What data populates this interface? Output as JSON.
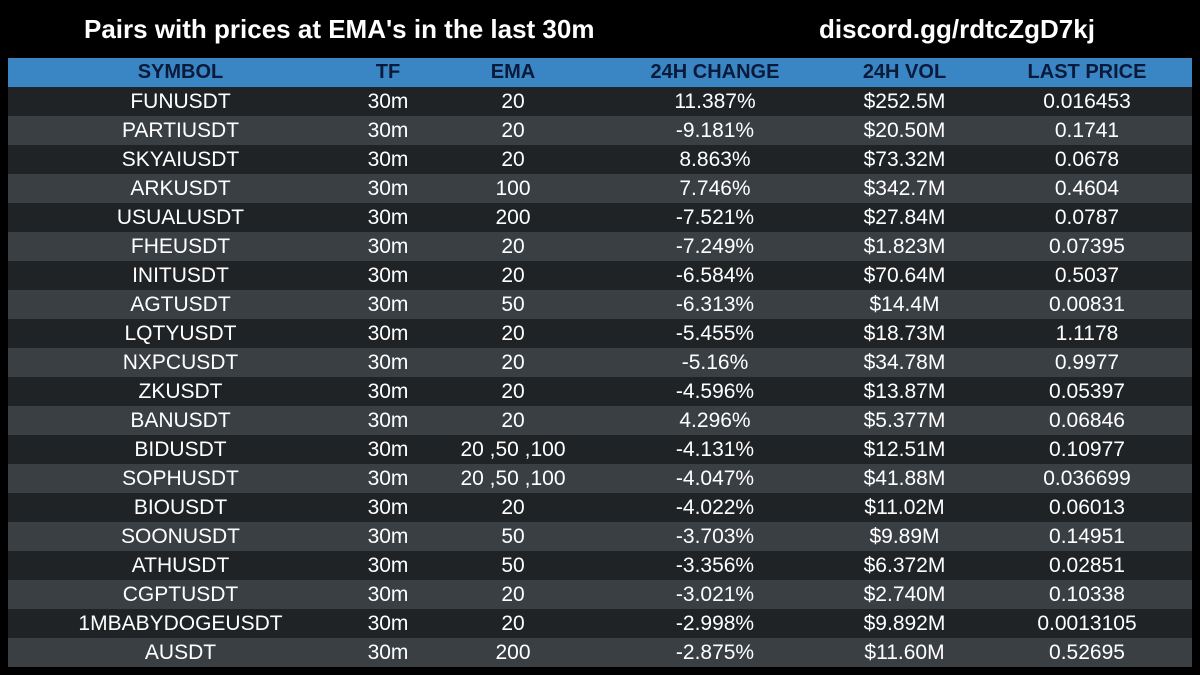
{
  "header": {
    "title": "Pairs with prices at EMA's in the last 30m",
    "invite": "discord.gg/rdtcZgD7kj"
  },
  "table": {
    "columns": [
      "SYMBOL",
      "TF",
      "EMA",
      "24H CHANGE",
      "24H VOL",
      "LAST PRICE"
    ],
    "rows": [
      [
        "FUNUSDT",
        "30m",
        "20",
        "11.387%",
        "$252.5M",
        "0.016453"
      ],
      [
        "PARTIUSDT",
        "30m",
        "20",
        "-9.181%",
        "$20.50M",
        "0.1741"
      ],
      [
        "SKYAIUSDT",
        "30m",
        "20",
        "8.863%",
        "$73.32M",
        "0.0678"
      ],
      [
        "ARKUSDT",
        "30m",
        "100",
        "7.746%",
        "$342.7M",
        "0.4604"
      ],
      [
        "USUALUSDT",
        "30m",
        "200",
        "-7.521%",
        "$27.84M",
        "0.0787"
      ],
      [
        "FHEUSDT",
        "30m",
        "20",
        "-7.249%",
        "$1.823M",
        "0.07395"
      ],
      [
        "INITUSDT",
        "30m",
        "20",
        "-6.584%",
        "$70.64M",
        "0.5037"
      ],
      [
        "AGTUSDT",
        "30m",
        "50",
        "-6.313%",
        "$14.4M",
        "0.00831"
      ],
      [
        "LQTYUSDT",
        "30m",
        "20",
        "-5.455%",
        "$18.73M",
        "1.1178"
      ],
      [
        "NXPCUSDT",
        "30m",
        "20",
        "-5.16%",
        "$34.78M",
        "0.9977"
      ],
      [
        "ZKUSDT",
        "30m",
        "20",
        "-4.596%",
        "$13.87M",
        "0.05397"
      ],
      [
        "BANUSDT",
        "30m",
        "20",
        "4.296%",
        "$5.377M",
        "0.06846"
      ],
      [
        "BIDUSDT",
        "30m",
        "20 ,50 ,100",
        "-4.131%",
        "$12.51M",
        "0.10977"
      ],
      [
        "SOPHUSDT",
        "30m",
        "20 ,50 ,100",
        "-4.047%",
        "$41.88M",
        "0.036699"
      ],
      [
        "BIOUSDT",
        "30m",
        "20",
        "-4.022%",
        "$11.02M",
        "0.06013"
      ],
      [
        "SOONUSDT",
        "30m",
        "50",
        "-3.703%",
        "$9.89M",
        "0.14951"
      ],
      [
        "ATHUSDT",
        "30m",
        "50",
        "-3.356%",
        "$6.372M",
        "0.02851"
      ],
      [
        "CGPTUSDT",
        "30m",
        "20",
        "-3.021%",
        "$2.740M",
        "0.10338"
      ],
      [
        "1MBABYDOGEUSDT",
        "30m",
        "20",
        "-2.998%",
        "$9.892M",
        "0.0013105"
      ],
      [
        "AUSDT",
        "30m",
        "200",
        "-2.875%",
        "$11.60M",
        "0.52695"
      ]
    ]
  },
  "colors": {
    "background": "#000000",
    "header_row": "#3a86c4",
    "row_dark": "#1f2326",
    "row_light": "#3a3f44",
    "text": "#ffffff"
  }
}
